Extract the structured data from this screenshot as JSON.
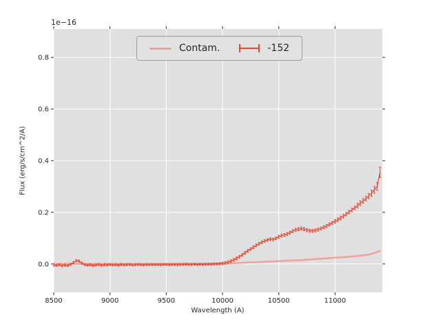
{
  "chart_data": {
    "type": "line",
    "title": "",
    "xlabel": "Wavelength (A)",
    "ylabel": "Flux (erg/s/cm^2/A)",
    "y_offset_text": "1e−16",
    "xlim": [
      8500,
      11420
    ],
    "ylim": [
      -0.11,
      0.91
    ],
    "xticks": [
      8500,
      9000,
      9500,
      10000,
      10500,
      11000
    ],
    "xtick_labels": [
      "8500",
      "9000",
      "9500",
      "10000",
      "10500",
      "11000"
    ],
    "yticks": [
      0.0,
      0.2,
      0.4,
      0.6,
      0.8
    ],
    "ytick_labels": [
      "0.0",
      "0.2",
      "0.4",
      "0.6",
      "0.8"
    ],
    "grid": true,
    "legend_position": "upper-center-left",
    "axes_bg": "#e0e0e0",
    "grid_color": "#ffffff",
    "tick_color": "#262626",
    "series": [
      {
        "name": "Contam.",
        "type": "line",
        "color": "#f0a29a",
        "x": [
          8500,
          8600,
          8700,
          8800,
          8900,
          9000,
          9100,
          9200,
          9300,
          9400,
          9500,
          9600,
          9700,
          9800,
          9900,
          10000,
          10100,
          10200,
          10300,
          10400,
          10500,
          10600,
          10700,
          10800,
          10900,
          11000,
          11100,
          11200,
          11300,
          11400
        ],
        "y": [
          0.0,
          0.0,
          0.001,
          0.0,
          0.0,
          0.0,
          0.0,
          0.0,
          0.0,
          0.0,
          0.0,
          0.001,
          0.001,
          0.001,
          0.001,
          0.002,
          0.003,
          0.005,
          0.007,
          0.009,
          0.011,
          0.013,
          0.015,
          0.018,
          0.021,
          0.024,
          0.027,
          0.031,
          0.036,
          0.05
        ]
      },
      {
        "name": "-152",
        "type": "errorbar",
        "color": "#e24a33",
        "x": [
          8500,
          8525,
          8550,
          8575,
          8600,
          8625,
          8650,
          8675,
          8700,
          8725,
          8750,
          8775,
          8800,
          8825,
          8850,
          8875,
          8900,
          8925,
          8950,
          8975,
          9000,
          9025,
          9050,
          9075,
          9100,
          9125,
          9150,
          9175,
          9200,
          9225,
          9250,
          9275,
          9300,
          9325,
          9350,
          9375,
          9400,
          9425,
          9450,
          9475,
          9500,
          9525,
          9550,
          9575,
          9600,
          9625,
          9650,
          9675,
          9700,
          9725,
          9750,
          9775,
          9800,
          9825,
          9850,
          9875,
          9900,
          9925,
          9950,
          9975,
          10000,
          10025,
          10050,
          10075,
          10100,
          10125,
          10150,
          10175,
          10200,
          10225,
          10250,
          10275,
          10300,
          10325,
          10350,
          10375,
          10400,
          10425,
          10450,
          10475,
          10500,
          10525,
          10550,
          10575,
          10600,
          10625,
          10650,
          10675,
          10700,
          10725,
          10750,
          10775,
          10800,
          10825,
          10850,
          10875,
          10900,
          10925,
          10950,
          10975,
          11000,
          11025,
          11050,
          11075,
          11100,
          11125,
          11150,
          11175,
          11200,
          11225,
          11250,
          11275,
          11300,
          11325,
          11350,
          11375,
          11400
        ],
        "y": [
          -0.004,
          -0.006,
          -0.003,
          -0.007,
          -0.005,
          -0.006,
          -0.002,
          0.005,
          0.013,
          0.011,
          0.003,
          -0.003,
          -0.005,
          -0.003,
          -0.006,
          -0.004,
          -0.002,
          -0.005,
          -0.003,
          -0.004,
          -0.002,
          -0.004,
          -0.003,
          -0.005,
          -0.002,
          -0.004,
          -0.003,
          -0.002,
          -0.004,
          -0.003,
          -0.002,
          -0.003,
          -0.004,
          -0.002,
          -0.003,
          -0.002,
          -0.003,
          -0.002,
          -0.003,
          -0.002,
          -0.002,
          -0.003,
          -0.002,
          -0.002,
          -0.003,
          -0.002,
          -0.002,
          -0.001,
          -0.002,
          -0.002,
          -0.001,
          -0.002,
          -0.001,
          -0.002,
          -0.001,
          -0.001,
          -0.001,
          0.0,
          0.0,
          0.001,
          0.002,
          0.004,
          0.007,
          0.011,
          0.016,
          0.022,
          0.028,
          0.035,
          0.043,
          0.051,
          0.058,
          0.065,
          0.072,
          0.078,
          0.084,
          0.089,
          0.093,
          0.096,
          0.095,
          0.099,
          0.105,
          0.11,
          0.112,
          0.116,
          0.121,
          0.127,
          0.132,
          0.135,
          0.137,
          0.135,
          0.131,
          0.129,
          0.128,
          0.13,
          0.133,
          0.137,
          0.142,
          0.147,
          0.153,
          0.159,
          0.165,
          0.171,
          0.178,
          0.185,
          0.193,
          0.201,
          0.209,
          0.217,
          0.226,
          0.235,
          0.244,
          0.253,
          0.263,
          0.274,
          0.287,
          0.3,
          0.355
        ],
        "yerr": [
          0.004,
          0.004,
          0.004,
          0.004,
          0.004,
          0.004,
          0.004,
          0.004,
          0.004,
          0.004,
          0.004,
          0.004,
          0.004,
          0.004,
          0.004,
          0.004,
          0.004,
          0.004,
          0.004,
          0.004,
          0.004,
          0.004,
          0.004,
          0.004,
          0.004,
          0.004,
          0.004,
          0.004,
          0.004,
          0.004,
          0.004,
          0.004,
          0.004,
          0.004,
          0.004,
          0.004,
          0.004,
          0.004,
          0.004,
          0.004,
          0.004,
          0.004,
          0.004,
          0.004,
          0.004,
          0.004,
          0.004,
          0.004,
          0.004,
          0.004,
          0.004,
          0.004,
          0.004,
          0.004,
          0.004,
          0.004,
          0.004,
          0.004,
          0.004,
          0.004,
          0.005,
          0.005,
          0.005,
          0.005,
          0.005,
          0.005,
          0.005,
          0.005,
          0.005,
          0.005,
          0.005,
          0.005,
          0.005,
          0.005,
          0.005,
          0.005,
          0.005,
          0.005,
          0.005,
          0.005,
          0.006,
          0.006,
          0.006,
          0.006,
          0.006,
          0.006,
          0.006,
          0.006,
          0.006,
          0.006,
          0.006,
          0.006,
          0.006,
          0.006,
          0.006,
          0.006,
          0.006,
          0.006,
          0.006,
          0.006,
          0.007,
          0.007,
          0.007,
          0.007,
          0.007,
          0.007,
          0.007,
          0.007,
          0.009,
          0.009,
          0.009,
          0.009,
          0.01,
          0.012,
          0.013,
          0.015,
          0.02
        ]
      }
    ]
  }
}
